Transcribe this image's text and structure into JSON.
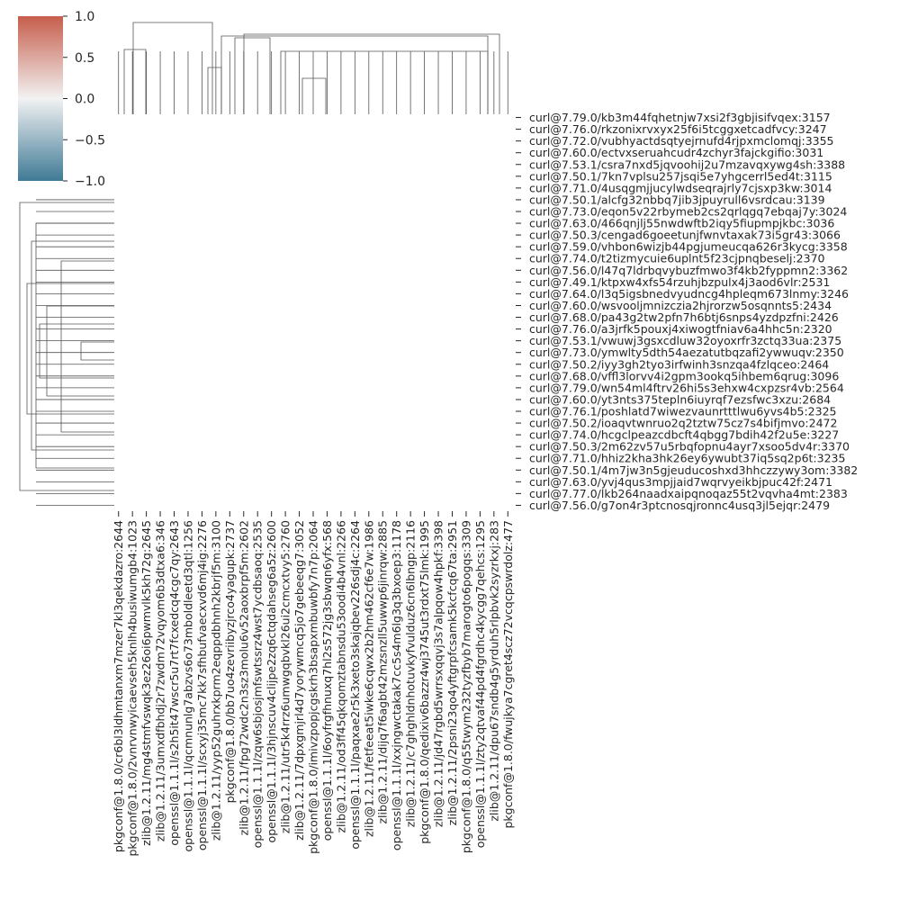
{
  "chart_data": {
    "type": "heatmap",
    "title": "",
    "xlabel": "",
    "ylabel": "",
    "row_labels": [
      "curl@7.79.0/kb3m44fqhetnjw7xsi2f3gbjisifvqex:3157",
      "curl@7.76.0/rkzonixrvxyx25f6i5tcggxetcadfvcy:3247",
      "curl@7.72.0/vubhyactdsqtyejrnufd4rjpxmclomqj:3355",
      "curl@7.60.0/ectvxseruahcudr4zchyr3fajckgifio:3031",
      "curl@7.53.1/csra7nxd5jqvoohij2u7mzavqxywg4sh:3388",
      "curl@7.50.1/7kn7vplsu257jsqi5e7yhgcerrl5ed4t:3115",
      "curl@7.71.0/4usqgmjjucylwdseqrajrly7cjsxp3kw:3014",
      "curl@7.50.1/alcfg32nbbq7jib3jpuyrull6vsrdcau:3139",
      "curl@7.73.0/eqon5v22rbymeb2cs2qrlqgq7ebqaj7y:3024",
      "curl@7.63.0/466qnjlj55nwdwftb2iqy5fiupmpjkbc:3036",
      "curl@7.50.3/cengad6goeetunjfwnvtaxak73i5gr43:3066",
      "curl@7.59.0/vhbon6wizjb44pgjumeucqa626r3kycg:3358",
      "curl@7.74.0/t2tizmycuie6uplnt5f23cjpnqbeselj:2370",
      "curl@7.56.0/l47q7ldrbqvybuzfmwo3f4kb2fyppmn2:3362",
      "curl@7.49.1/ktpxw4xfs54rzuhjbzpulx4j3aod6vlr:2531",
      "curl@7.64.0/l3q5igsbnedvyudncg4hpleqm673lnmy:3246",
      "curl@7.60.0/wsvooljmnizczia2hjrorzw5osqnnts5:2434",
      "curl@7.68.0/pa43g2tw2pfn7h6btj6snps4yzdpzfni:2426",
      "curl@7.76.0/a3jrfk5pouxj4xiwogtfniav6a4hhc5n:2320",
      "curl@7.53.1/vwuwj3gsxcdluw32oyoxrfr3zctq33ua:2375",
      "curl@7.73.0/ymwlty5dth54aezatutbqzafi2ywwuqv:2350",
      "curl@7.50.2/iyy3gh2tyo3irfwinh3snzqa4fzlqceo:2464",
      "curl@7.68.0/vffl3lorvv4i2gpm3ookq5ihbem6qrug:3096",
      "curl@7.79.0/wn54ml4ftrv26hi5s3ehxw4cxpzsr4vb:2564",
      "curl@7.60.0/yt3nts375tepln6iuyrqf7ezsfwc3xzu:2684",
      "curl@7.76.1/poshlatd7wiwezvaunrtttlwu6yvs4b5:2325",
      "curl@7.50.2/ioaqvtwnruo2q2tztw75cz7s4bifjmvo:2472",
      "curl@7.74.0/hcgclpeazcdbcft4qbgg7bdih42f2u5e:3227",
      "curl@7.50.3/2m62zv57u5rbqfopnu4ayr7xsoo5dv4r:3370",
      "curl@7.71.0/hhiz2kha3hk26ey6ywubt37iq5sq2p6t:3235",
      "curl@7.50.1/4m7jw3n5gjeuducoshxd3hhczzywy3om:3382",
      "curl@7.63.0/yvj4qus3mpjjaid7wqrvyeikbjpuc42f:2471",
      "curl@7.77.0/lkb264naadxaipqnoqaz55t2vqvha4mt:2383",
      "curl@7.56.0/g7on4r3ptcnosqjronnc4usq3jl5ejqr:2479"
    ],
    "col_labels": [
      "pkgconf@1.8.0/cr6bl3ldhmtanxm7mzer7kl3qekdazro:2644",
      "pkgconf@1.8.0/2vnrvnwyicaevseh5knlh4busiwumgb4:1023",
      "zlib@1.2.11/mg4stmfvswqk3ez26oi6pwmvlk5kh72g:2645",
      "zlib@1.2.11/3umxdfbhdj2r7zwdm72vqyom6b3dtxa6:346",
      "openssl@1.1.1l/s2h5it47wscr5u7rt7fcxedcq4cgc7qy:2643",
      "openssl@1.1.1l/qcmnunlg7abzvs6o73mboldleetd3qtl:1256",
      "openssl@1.1.1l/scxyj35mc7kk7sfhbufvaecxvd6mj4ig:2276",
      "zlib@1.2.11/yyp52guhrxkprm2eqppdbhnh2kbrjf5m:3100",
      "pkgconf@1.8.0/bb7uo4zevriibyzjrco4yagupk:2737",
      "zlib@1.2.11/fpg72wdc2n3sz3molu6v52aoxbrpf5m:2602",
      "openssl@1.1.1l/zqw6sbjosjmfswtssrz4wst7ycdbsaoq:2535",
      "openssl@1.1.1l/3hjnscuv4clijpe2zq6ctqdahseg6a5z:2600",
      "zlib@1.2.11/utr5k4rrz6umwgqbvkl26ui2cmcxtvy5:2760",
      "zlib@1.2.11/7dpxgmjrl4d7yorywmcq5jo7gebeeqg7:3052",
      "pkgconf@1.8.0/imivzpopjcgskrh3bsapxmbuwbfy7n7p:2064",
      "openssl@1.1.1l/6oyfrgfhnuxq7hl2s572jg3sbwqn6yfx:568",
      "zlib@1.2.11/od3ff45qkqomztabnsdu53oodi4b4vnl:2266",
      "openssl@1.1.1l/paqxae2r5k3xeto3skajqbev226sdj4c:2264",
      "zlib@1.2.11/fetfeeat5iwke6cqwx2b2hm462cf6e7w:1986",
      "zlib@1.2.11/dijq7f6agbt42mzsnzll5uwwp6jinrqw:2885",
      "openssl@1.1.1l/xxjngwctakak7cc5s4m6lg3q3bxoep3:1178",
      "zlib@1.2.11/c7ghghldnhotuvkyfvulduz6cn6lbngp:2116",
      "pkgconf@1.8.0/qedixiv6bazzr4wj3745ut3rdxt75lmk:1995",
      "zlib@1.2.11/jd47rgbd5wrrsxqqvj3s7alpqow4hpkf:3398",
      "zlib@1.2.11/2psni23qo4yftgrpfcsamk5kcfcq67ta:2951",
      "pkgconf@1.8.0/q55twym232tyzfbyb7marogto6pogqs:3309",
      "openssl@1.1.1l/zty2qtvaf44pd4fgrdhc4kycgg7qehcs:1295",
      "zlib@1.2.11/dpu67sndb4g5yrduh5rlpbvk2syzrkxj:283",
      "pkgconf@1.8.0/fwujkya7cgret4scz72vcqcpswrdolz:477"
    ],
    "cells_visible": "none",
    "colorbar": {
      "ticks": [
        1.0,
        0.5,
        0.0,
        -0.5,
        -1.0
      ],
      "tick_labels": [
        "1.0",
        "0.5",
        "0.0",
        "−0.5",
        "−1.0"
      ],
      "vmin": -1.0,
      "vmax": 1.0,
      "colormap": "diverging blue-white-red",
      "color_high": "#c65d4b",
      "color_mid": "#f2f2f2",
      "color_low": "#3f7a96"
    },
    "row_dendrogram": true,
    "col_dendrogram": true,
    "grid": false,
    "legend": "colorbar top-left"
  }
}
